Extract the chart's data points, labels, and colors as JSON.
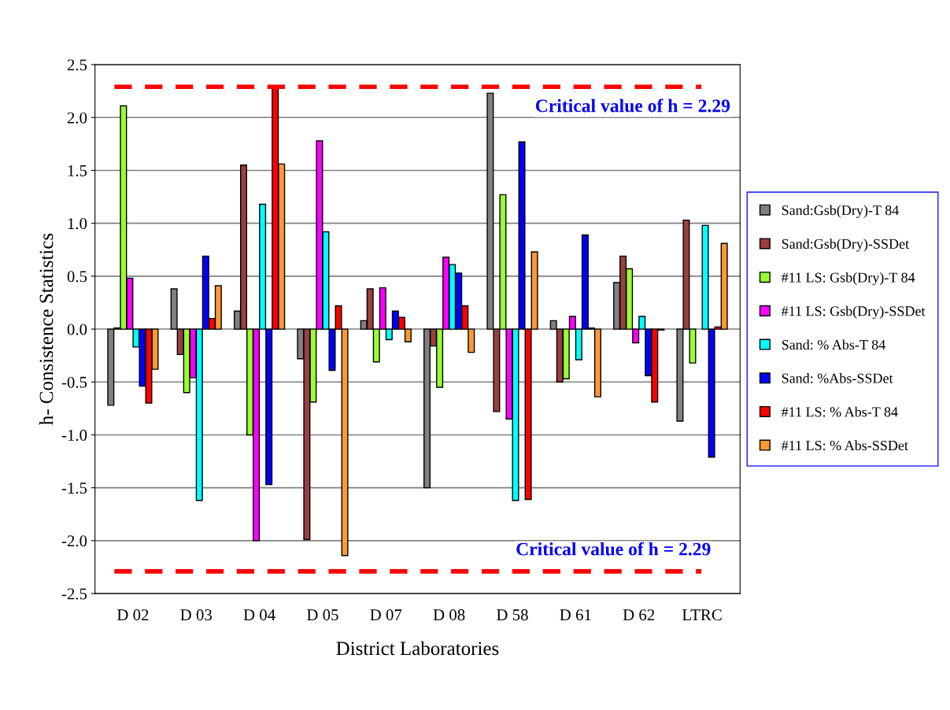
{
  "chart_data": {
    "type": "bar",
    "xlabel": "District Laboratories",
    "ylabel": "h- Consistence Statistics",
    "categories": [
      "D 02",
      "D 03",
      "D 04",
      "D 05",
      "D 07",
      "D 08",
      "D 58",
      "D 61",
      "D 62",
      "LTRC"
    ],
    "series": [
      {
        "name": "Sand:Gsb(Dry)-T 84",
        "color": "#808080",
        "values": [
          -0.72,
          0.38,
          0.17,
          -0.28,
          0.08,
          -1.5,
          2.23,
          0.08,
          0.44,
          -0.87
        ]
      },
      {
        "name": "Sand:Gsb(Dry)-SSDet",
        "color": "#993f3f",
        "values": [
          0.01,
          -0.24,
          1.55,
          -1.99,
          0.38,
          -0.16,
          -0.78,
          -0.5,
          0.69,
          1.03
        ]
      },
      {
        "name": "#11 LS: Gsb(Dry)-T 84",
        "color": "#99ff33",
        "values": [
          2.11,
          -0.6,
          -1.0,
          -0.69,
          -0.31,
          -0.55,
          1.27,
          -0.47,
          0.57,
          -0.32
        ]
      },
      {
        "name": "#11 LS: Gsb(Dry)-SSDet",
        "color": "#ff00ff",
        "values": [
          0.48,
          -0.46,
          -2.0,
          1.78,
          0.39,
          0.68,
          -0.85,
          0.12,
          -0.13,
          null
        ]
      },
      {
        "name": "Sand: % Abs-T 84",
        "color": "#00ffff",
        "values": [
          -0.17,
          -1.62,
          1.18,
          0.92,
          -0.1,
          0.61,
          -1.62,
          -0.29,
          0.12,
          0.98
        ]
      },
      {
        "name": "Sand: %Abs-SSDet",
        "color": "#0000ff",
        "values": [
          -0.54,
          0.69,
          -1.47,
          -0.39,
          0.17,
          0.53,
          1.77,
          0.89,
          -0.44,
          -1.21
        ]
      },
      {
        "name": "#11 LS: % Abs-T 84",
        "color": "#ff0000",
        "values": [
          -0.7,
          0.1,
          2.29,
          0.22,
          0.11,
          0.22,
          -1.61,
          0.01,
          -0.69,
          0.02
        ]
      },
      {
        "name": "#11 LS: % Abs-SSDet",
        "color": "#ff9933",
        "values": [
          -0.38,
          0.41,
          1.56,
          -2.14,
          -0.12,
          -0.22,
          0.73,
          -0.64,
          -0.01,
          0.81
        ]
      }
    ],
    "ylim": [
      -2.5,
      2.5
    ],
    "yticks": [
      {
        "value": -2.5,
        "label": "-2.5"
      },
      {
        "value": -2.0,
        "label": "-2.0"
      },
      {
        "value": -1.5,
        "label": "-1.5"
      },
      {
        "value": -1.0,
        "label": "-1.0"
      },
      {
        "value": -0.5,
        "label": "-0.5"
      },
      {
        "value": 0.0,
        "label": "0.0"
      },
      {
        "value": 0.5,
        "label": "0.5"
      },
      {
        "value": 1.0,
        "label": "1.0"
      },
      {
        "value": 1.5,
        "label": "1.5"
      },
      {
        "value": 2.0,
        "label": "2.0"
      },
      {
        "value": 2.5,
        "label": "2.5"
      }
    ],
    "ref_lines": [
      {
        "axis": "y",
        "value": 2.29,
        "color": "#ff0000",
        "line_style": "dashed"
      },
      {
        "axis": "y",
        "value": -2.29,
        "color": "#ff0000",
        "line_style": "dashed"
      }
    ],
    "annotations": [
      "Critical value of h = 2.29",
      "Critical value of h = 2.29"
    ],
    "grid": "y",
    "legend": "right"
  }
}
